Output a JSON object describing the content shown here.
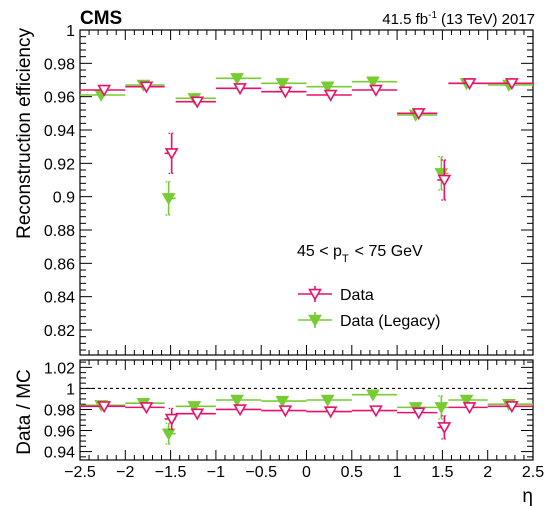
{
  "header": {
    "experiment": "CMS",
    "lumi_prefix": "41.5 fb",
    "lumi_exponent": "-1",
    "lumi_suffix": "(13 TeV) 2017"
  },
  "legend": {
    "range_left": "45 < p",
    "range_sub": "T",
    "range_right": "< 75 GeV",
    "entries": [
      "Data",
      "Data (Legacy)"
    ]
  },
  "colors": {
    "data": "#e8106a",
    "legacy": "#77cc33"
  },
  "chart_data": [
    {
      "type": "scatter",
      "panel": "top",
      "ylabel": "Reconstruction efficiency",
      "xlim": [
        -2.5,
        2.5
      ],
      "ylim": [
        0.805,
        1.0
      ],
      "x_ticks": [
        -2.5,
        -2,
        -1.5,
        -1,
        -0.5,
        0,
        0.5,
        1,
        1.5,
        2,
        2.5
      ],
      "y_ticks": [
        0.82,
        0.84,
        0.86,
        0.88,
        0.9,
        0.92,
        0.94,
        0.96,
        0.98,
        1
      ],
      "y_tick_labels": [
        "0.82",
        "0.84",
        "0.86",
        "0.88",
        "0.9",
        "0.92",
        "0.94",
        "0.96",
        "0.98",
        "1"
      ],
      "legend_position": "bottom-right",
      "series": [
        {
          "name": "Data",
          "bins": [
            [
              -2.5,
              -2.0
            ],
            [
              -2.0,
              -1.566
            ],
            [
              -1.566,
              -1.444
            ],
            [
              -1.444,
              -1.0
            ],
            [
              -1.0,
              -0.5
            ],
            [
              -0.5,
              0.0
            ],
            [
              0.0,
              0.5
            ],
            [
              0.5,
              1.0
            ],
            [
              1.0,
              1.444
            ],
            [
              1.444,
              1.566
            ],
            [
              1.566,
              2.0
            ],
            [
              2.0,
              2.5
            ]
          ],
          "y": [
            0.964,
            0.966,
            0.926,
            0.957,
            0.965,
            0.963,
            0.961,
            0.964,
            0.95,
            0.91,
            0.968,
            0.968
          ],
          "yerr": [
            0.003,
            0.003,
            0.012,
            0.003,
            0.002,
            0.002,
            0.002,
            0.002,
            0.003,
            0.012,
            0.003,
            0.003
          ]
        },
        {
          "name": "Data (Legacy)",
          "bins": [
            [
              -2.5,
              -2.0
            ],
            [
              -2.0,
              -1.566
            ],
            [
              -1.566,
              -1.444
            ],
            [
              -1.444,
              -1.0
            ],
            [
              -1.0,
              -0.5
            ],
            [
              -0.5,
              0.0
            ],
            [
              0.0,
              0.5
            ],
            [
              0.5,
              1.0
            ],
            [
              1.0,
              1.444
            ],
            [
              1.444,
              1.566
            ],
            [
              1.566,
              2.0
            ],
            [
              2.0,
              2.5
            ]
          ],
          "y": [
            0.961,
            0.967,
            0.899,
            0.959,
            0.971,
            0.968,
            0.966,
            0.969,
            0.949,
            0.914,
            0.968,
            0.967
          ],
          "yerr": [
            0.003,
            0.003,
            0.01,
            0.003,
            0.002,
            0.002,
            0.002,
            0.002,
            0.003,
            0.01,
            0.003,
            0.003
          ]
        }
      ]
    },
    {
      "type": "scatter",
      "panel": "ratio",
      "xlabel": "η",
      "ylabel": "Data / MC",
      "xlim": [
        -2.5,
        2.5
      ],
      "ylim": [
        0.932,
        1.027
      ],
      "x_ticks": [
        -2.5,
        -2,
        -1.5,
        -1,
        -0.5,
        0,
        0.5,
        1,
        1.5,
        2,
        2.5
      ],
      "x_tick_labels": [
        "−2.5",
        "−2",
        "−1.5",
        "−1",
        "−0.5",
        "0",
        "0.5",
        "1",
        "1.5",
        "2",
        "2.5"
      ],
      "y_ticks": [
        0.94,
        0.96,
        0.98,
        1,
        1.02
      ],
      "y_tick_labels": [
        "0.94",
        "0.96",
        "0.98",
        "1",
        "1.02"
      ],
      "reference_line": 1,
      "series": [
        {
          "name": "Data",
          "bins": [
            [
              -2.5,
              -2.0
            ],
            [
              -2.0,
              -1.566
            ],
            [
              -1.566,
              -1.444
            ],
            [
              -1.444,
              -1.0
            ],
            [
              -1.0,
              -0.5
            ],
            [
              -0.5,
              0.0
            ],
            [
              0.0,
              0.5
            ],
            [
              0.5,
              1.0
            ],
            [
              1.0,
              1.444
            ],
            [
              1.444,
              1.566
            ],
            [
              1.566,
              2.0
            ],
            [
              2.0,
              2.5
            ]
          ],
          "y": [
            0.983,
            0.982,
            0.971,
            0.976,
            0.98,
            0.979,
            0.978,
            0.979,
            0.977,
            0.963,
            0.982,
            0.983
          ],
          "yerr": [
            0.003,
            0.003,
            0.01,
            0.003,
            0.002,
            0.002,
            0.002,
            0.002,
            0.003,
            0.011,
            0.003,
            0.003
          ]
        },
        {
          "name": "Data (Legacy)",
          "bins": [
            [
              -2.5,
              -2.0
            ],
            [
              -2.0,
              -1.566
            ],
            [
              -1.566,
              -1.444
            ],
            [
              -1.444,
              -1.0
            ],
            [
              -1.0,
              -0.5
            ],
            [
              -0.5,
              0.0
            ],
            [
              0.0,
              0.5
            ],
            [
              0.5,
              1.0
            ],
            [
              1.0,
              1.444
            ],
            [
              1.444,
              1.566
            ],
            [
              1.566,
              2.0
            ],
            [
              2.0,
              2.5
            ]
          ],
          "y": [
            0.984,
            0.986,
            0.957,
            0.983,
            0.989,
            0.988,
            0.989,
            0.994,
            0.982,
            0.982,
            0.989,
            0.985
          ],
          "yerr": [
            0.003,
            0.003,
            0.01,
            0.003,
            0.002,
            0.002,
            0.002,
            0.002,
            0.003,
            0.011,
            0.003,
            0.003
          ]
        }
      ]
    }
  ]
}
